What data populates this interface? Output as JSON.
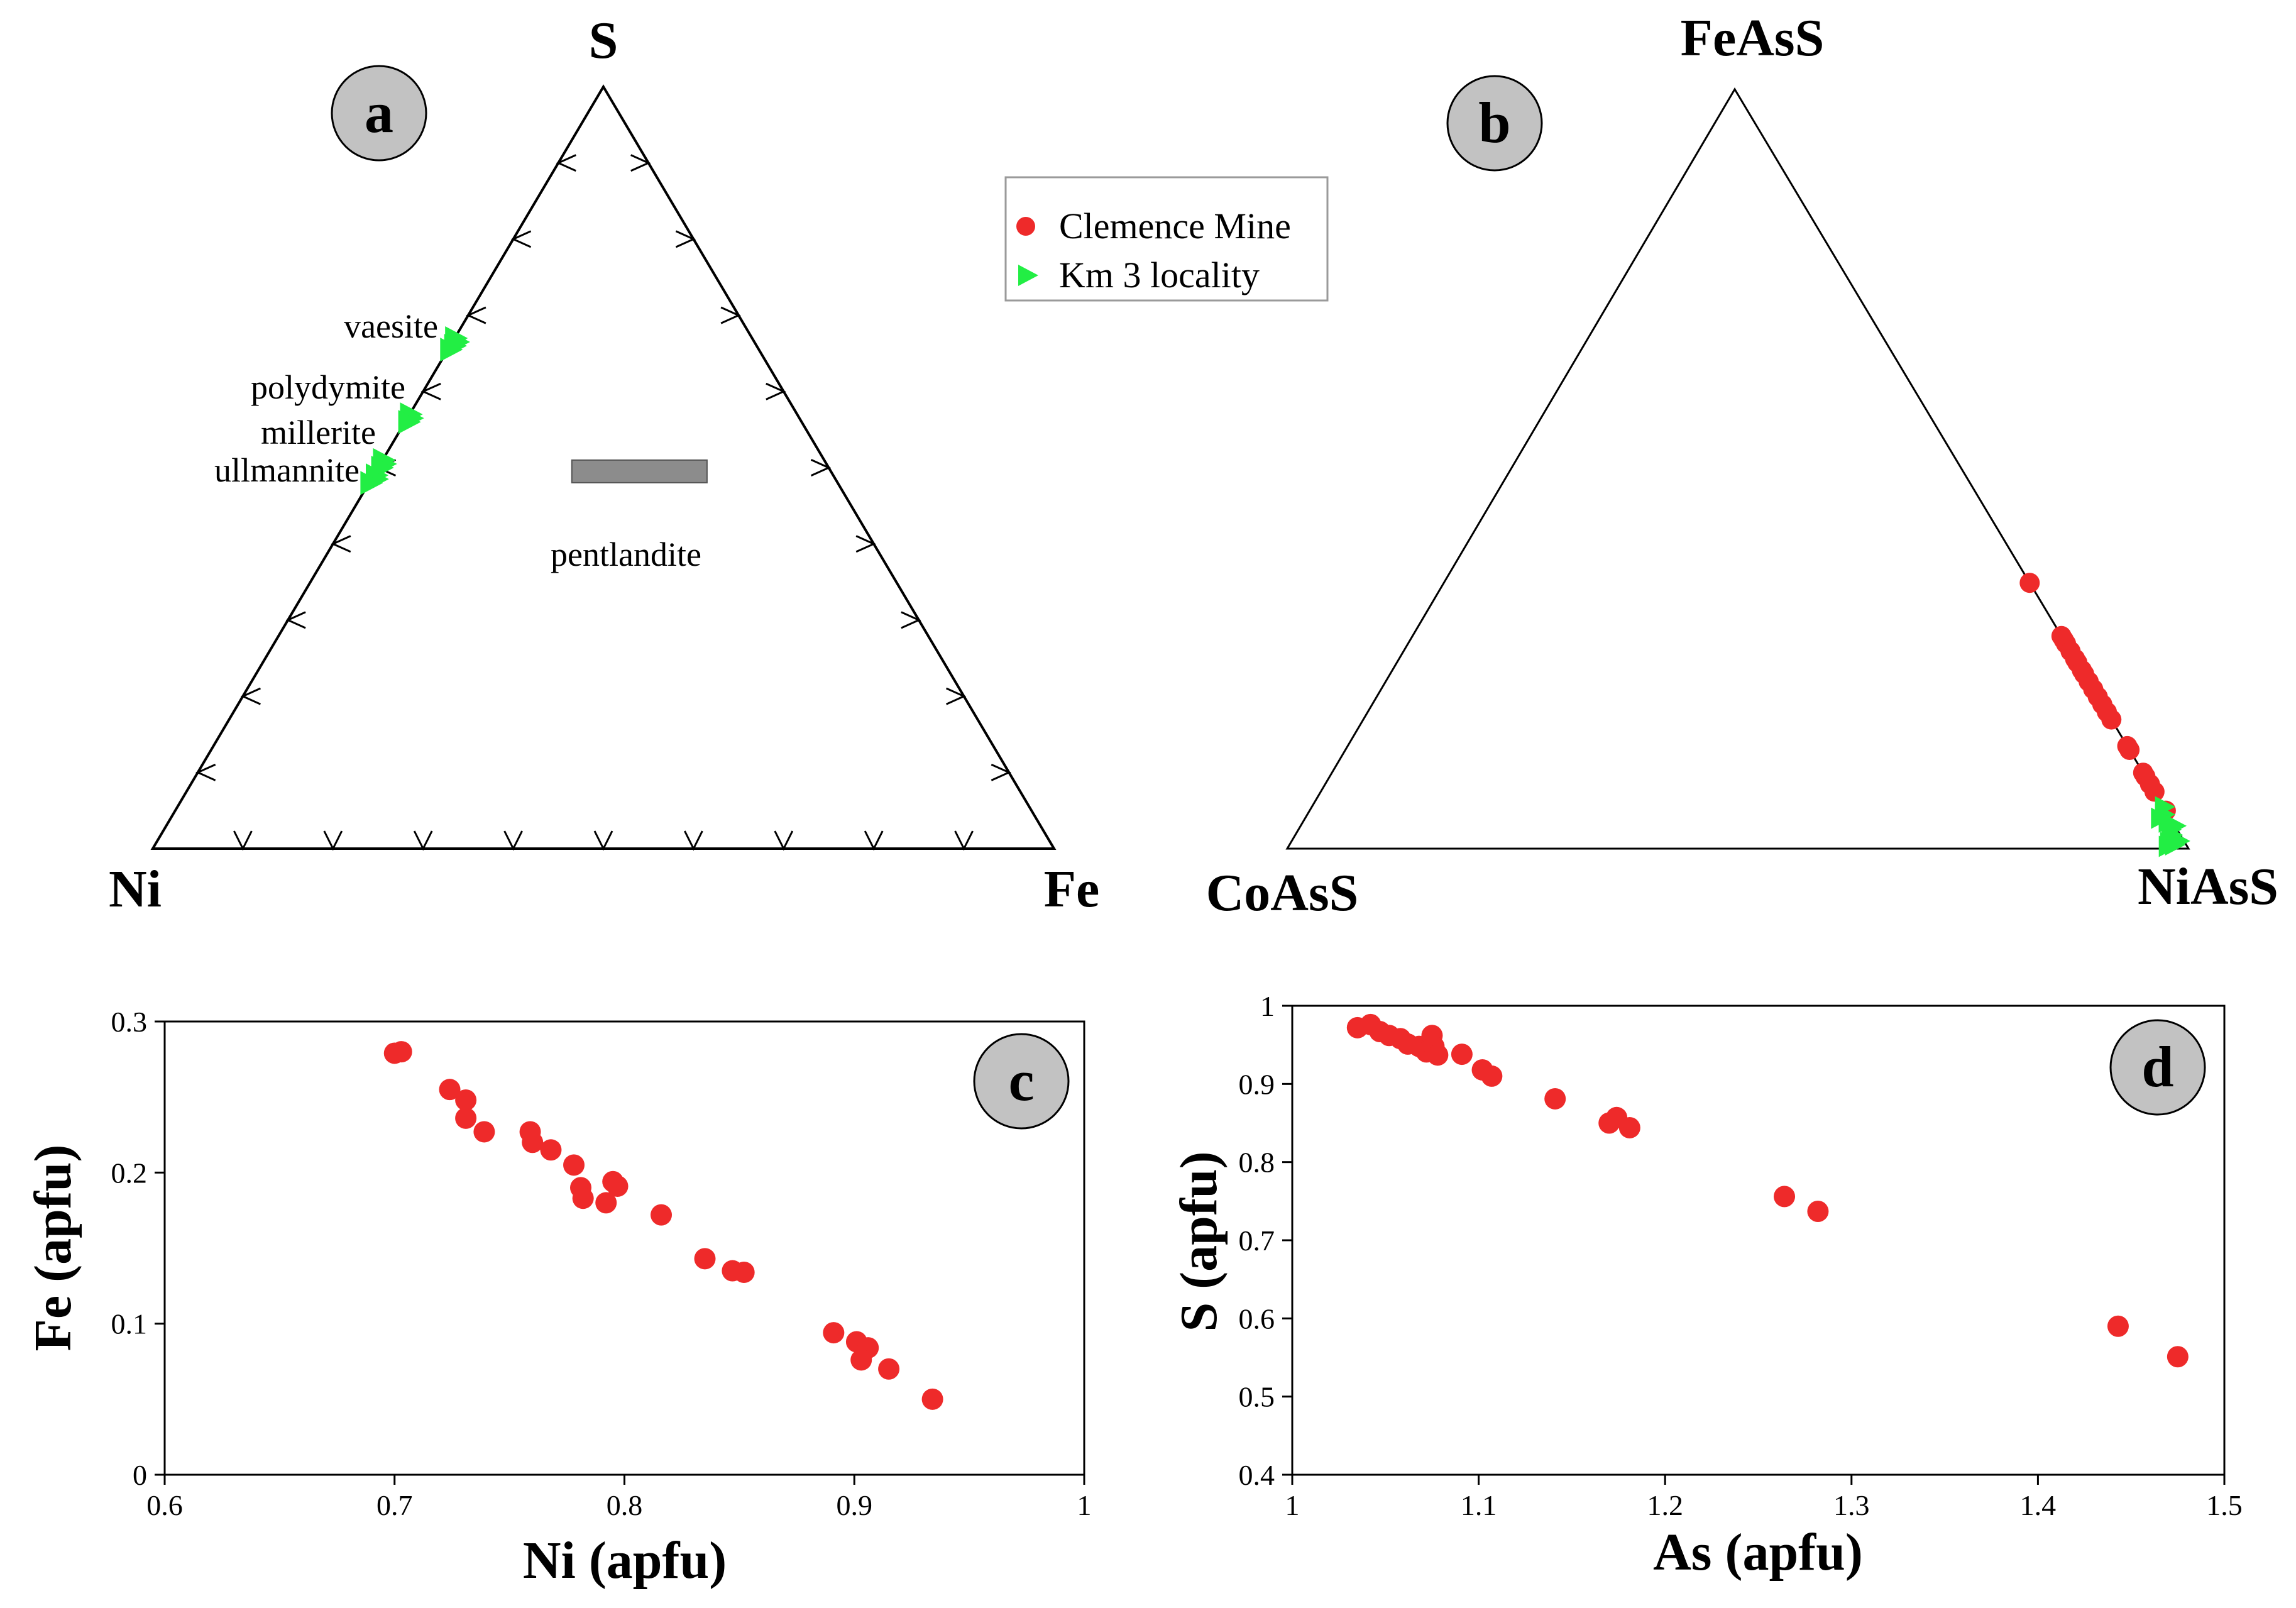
{
  "colors": {
    "clemence": "#ee2a2a",
    "km3": "#22ee44",
    "badge_fill": "#c2c2c2",
    "pentlandite_box": "#8c8c8c"
  },
  "legend": {
    "entries": [
      {
        "label": "Clemence Mine",
        "marker": "circle",
        "color": "#ee2a2a"
      },
      {
        "label": "Km 3 locality",
        "marker": "triangle",
        "color": "#22ee44"
      }
    ]
  },
  "chart_data": [
    {
      "id": "a",
      "type": "ternary",
      "panel_label": "a",
      "apices": {
        "top": "S",
        "left": "Ni",
        "right": "Fe"
      },
      "mineral_labels": {
        "vaesite": "vaesite",
        "polydymite": "polydymite",
        "millerite": "millerite",
        "ullmannite": "ullmannite",
        "pentlandite": "pentlandite"
      },
      "pentlandite_field": {
        "S_range": [
          0.49,
          0.51
        ],
        "Fe_range": [
          0.21,
          0.37
        ]
      },
      "series": [
        {
          "name": "Km 3 locality",
          "marker": "triangle",
          "color": "#22ee44",
          "points": [
            {
              "S": 0.67,
              "Fe": 0.0
            },
            {
              "S": 0.665,
              "Fe": 0.005
            },
            {
              "S": 0.66,
              "Fe": 0.004
            },
            {
              "S": 0.655,
              "Fe": 0.002
            },
            {
              "S": 0.57,
              "Fe": 0.0
            },
            {
              "S": 0.565,
              "Fe": 0.004
            },
            {
              "S": 0.56,
              "Fe": 0.003
            },
            {
              "S": 0.51,
              "Fe": 0.0
            },
            {
              "S": 0.505,
              "Fe": 0.004
            },
            {
              "S": 0.5,
              "Fe": 0.003
            },
            {
              "S": 0.49,
              "Fe": 0.002
            },
            {
              "S": 0.485,
              "Fe": 0.005
            },
            {
              "S": 0.48,
              "Fe": 0.001
            }
          ]
        }
      ]
    },
    {
      "id": "b",
      "type": "ternary",
      "panel_label": "b",
      "apices": {
        "top": "FeAsS",
        "left": "CoAsS",
        "right": "NiAsS"
      },
      "series": [
        {
          "name": "Clemence Mine",
          "marker": "circle",
          "color": "#ee2a2a",
          "points": [
            {
              "FeAsS": 0.35,
              "CoAsS": 0.0
            },
            {
              "FeAsS": 0.28,
              "CoAsS": 0.0
            },
            {
              "FeAsS": 0.275,
              "CoAsS": 0.0
            },
            {
              "FeAsS": 0.27,
              "CoAsS": 0.0
            },
            {
              "FeAsS": 0.26,
              "CoAsS": 0.0
            },
            {
              "FeAsS": 0.25,
              "CoAsS": 0.0
            },
            {
              "FeAsS": 0.245,
              "CoAsS": 0.0
            },
            {
              "FeAsS": 0.235,
              "CoAsS": 0.0
            },
            {
              "FeAsS": 0.23,
              "CoAsS": 0.0
            },
            {
              "FeAsS": 0.22,
              "CoAsS": 0.0
            },
            {
              "FeAsS": 0.21,
              "CoAsS": 0.0
            },
            {
              "FeAsS": 0.2,
              "CoAsS": 0.0
            },
            {
              "FeAsS": 0.19,
              "CoAsS": 0.0
            },
            {
              "FeAsS": 0.18,
              "CoAsS": 0.0
            },
            {
              "FeAsS": 0.17,
              "CoAsS": 0.0
            },
            {
              "FeAsS": 0.135,
              "CoAsS": 0.0
            },
            {
              "FeAsS": 0.13,
              "CoAsS": 0.0
            },
            {
              "FeAsS": 0.1,
              "CoAsS": 0.0
            },
            {
              "FeAsS": 0.095,
              "CoAsS": 0.0
            },
            {
              "FeAsS": 0.085,
              "CoAsS": 0.0
            },
            {
              "FeAsS": 0.075,
              "CoAsS": 0.0
            },
            {
              "FeAsS": 0.05,
              "CoAsS": 0.0
            }
          ]
        },
        {
          "name": "Km 3 locality",
          "marker": "triangle",
          "color": "#22ee44",
          "points": [
            {
              "FeAsS": 0.055,
              "CoAsS": 0.0
            },
            {
              "FeAsS": 0.045,
              "CoAsS": 0.005
            },
            {
              "FeAsS": 0.035,
              "CoAsS": 0.006
            },
            {
              "FeAsS": 0.025,
              "CoAsS": 0.008
            },
            {
              "FeAsS": 0.018,
              "CoAsS": 0.01
            },
            {
              "FeAsS": 0.012,
              "CoAsS": 0.012
            },
            {
              "FeAsS": 0.008,
              "CoAsS": 0.018
            },
            {
              "FeAsS": 0.005,
              "CoAsS": 0.014
            },
            {
              "FeAsS": 0.003,
              "CoAsS": 0.022
            },
            {
              "FeAsS": 0.01,
              "CoAsS": 0.006
            },
            {
              "FeAsS": 0.03,
              "CoAsS": 0.0
            },
            {
              "FeAsS": 0.04,
              "CoAsS": 0.012
            }
          ]
        }
      ]
    },
    {
      "id": "c",
      "type": "scatter",
      "panel_label": "c",
      "xlabel": "Ni (apfu)",
      "ylabel": "Fe (apfu)",
      "xlim": [
        0.6,
        1.0
      ],
      "ylim": [
        0.0,
        0.3
      ],
      "xticks": [
        0.6,
        0.7,
        0.8,
        0.9,
        1.0
      ],
      "xtick_labels": [
        "0.6",
        "0.7",
        "0.8",
        "0.9",
        "1"
      ],
      "yticks": [
        0.0,
        0.1,
        0.2,
        0.3
      ],
      "ytick_labels": [
        "0",
        "0.1",
        "0.2",
        "0.3"
      ],
      "series": [
        {
          "name": "Clemence Mine",
          "color": "#ee2a2a",
          "x": [
            0.7,
            0.703,
            0.724,
            0.731,
            0.731,
            0.739,
            0.759,
            0.76,
            0.768,
            0.778,
            0.781,
            0.782,
            0.792,
            0.795,
            0.797,
            0.816,
            0.835,
            0.847,
            0.852,
            0.891,
            0.901,
            0.906,
            0.903,
            0.915,
            0.934
          ],
          "y": [
            0.279,
            0.28,
            0.255,
            0.248,
            0.236,
            0.227,
            0.227,
            0.22,
            0.215,
            0.205,
            0.19,
            0.183,
            0.18,
            0.194,
            0.191,
            0.172,
            0.143,
            0.135,
            0.134,
            0.094,
            0.088,
            0.084,
            0.076,
            0.07,
            0.05
          ]
        }
      ]
    },
    {
      "id": "d",
      "type": "scatter",
      "panel_label": "d",
      "xlabel": "As (apfu)",
      "ylabel": "S (apfu)",
      "xlim": [
        1.0,
        1.5
      ],
      "ylim": [
        0.4,
        1.0
      ],
      "xticks": [
        1.0,
        1.1,
        1.2,
        1.3,
        1.4,
        1.5
      ],
      "xtick_labels": [
        "1",
        "1.1",
        "1.2",
        "1.3",
        "1.4",
        "1.5"
      ],
      "yticks": [
        0.4,
        0.5,
        0.6,
        0.7,
        0.8,
        0.9,
        1.0
      ],
      "ytick_labels": [
        "0.4",
        "0.5",
        "0.6",
        "0.7",
        "0.8",
        "0.9",
        "1"
      ],
      "series": [
        {
          "name": "Clemence Mine",
          "color": "#ee2a2a",
          "x": [
            1.035,
            1.042,
            1.047,
            1.052,
            1.058,
            1.062,
            1.068,
            1.072,
            1.075,
            1.076,
            1.078,
            1.091,
            1.102,
            1.107,
            1.141,
            1.17,
            1.174,
            1.181,
            1.264,
            1.282,
            1.443,
            1.475
          ],
          "y": [
            0.972,
            0.976,
            0.967,
            0.962,
            0.958,
            0.951,
            0.948,
            0.941,
            0.962,
            0.948,
            0.937,
            0.938,
            0.918,
            0.91,
            0.881,
            0.85,
            0.857,
            0.844,
            0.756,
            0.737,
            0.59,
            0.551
          ]
        }
      ]
    }
  ]
}
